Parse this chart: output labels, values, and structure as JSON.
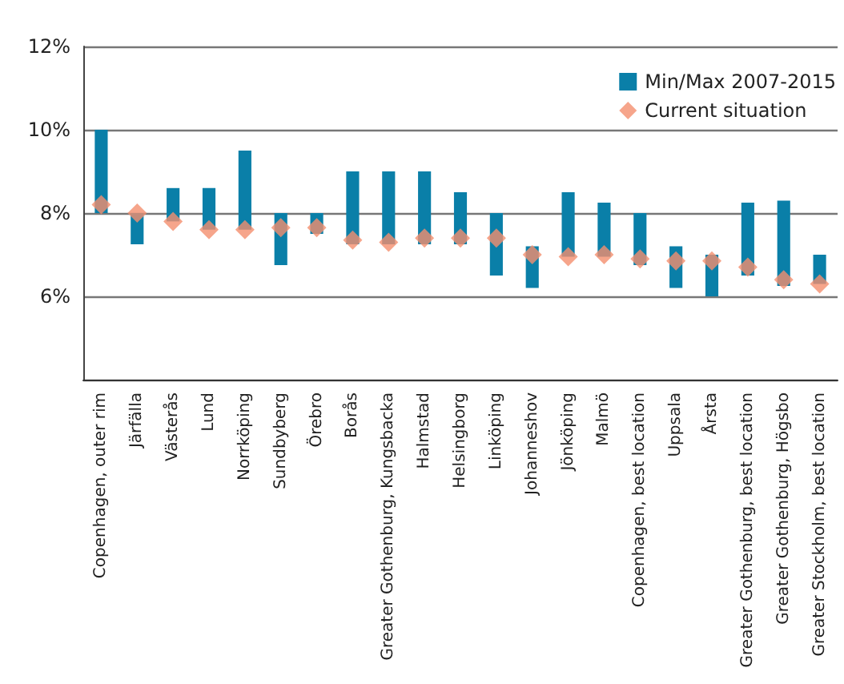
{
  "chart_data": {
    "type": "bar",
    "categories": [
      "Copenhagen, outer rim",
      "Järfälla",
      "Västerås",
      "Lund",
      "Norrköping",
      "Sundbyberg",
      "Örebro",
      "Borås",
      "Greater Gothenburg, Kungsbacka",
      "Halmstad",
      "Helsingborg",
      "Linköping",
      "Johanneshov",
      "Jönköping",
      "Malmö",
      "Copenhagen, best location",
      "Uppsala",
      "Årsta",
      "Greater Gothenburg, best location",
      "Greater Gothenburg, Högsbo",
      "Greater Stockholm, best location"
    ],
    "series": [
      {
        "name": "Min/Max 2007-2015",
        "color": "#0a7fa8",
        "base": [
          8.0,
          7.25,
          7.8,
          7.6,
          7.6,
          6.75,
          7.5,
          7.25,
          7.25,
          7.25,
          7.25,
          6.5,
          6.2,
          6.95,
          6.95,
          6.75,
          6.2,
          6.0,
          6.5,
          6.25,
          6.3
        ],
        "values": [
          2.0,
          0.75,
          0.8,
          1.0,
          1.9,
          1.25,
          0.5,
          1.75,
          1.75,
          1.75,
          1.25,
          1.5,
          1.0,
          1.55,
          1.3,
          1.25,
          1.0,
          1.0,
          1.75,
          2.05,
          0.7
        ]
      },
      {
        "name": "Current situation",
        "type": "scatter",
        "color": "#f48f6e",
        "marker": "diamond",
        "x": [
          "Copenhagen, outer rim",
          "Järfälla",
          "Västerås",
          "Lund",
          "Norrköping",
          "Sundbyberg",
          "Örebro",
          "Borås",
          "Greater Gothenburg, Kungsbacka",
          "Halmstad",
          "Helsingborg",
          "Linköping",
          "Johanneshov",
          "Jönköping",
          "Malmö",
          "Copenhagen, best location",
          "Uppsala",
          "Årsta",
          "Greater Gothenburg, best location",
          "Greater Gothenburg, Högsbo",
          "Greater Stockholm, best location"
        ],
        "values": [
          8.2,
          8.0,
          7.8,
          7.6,
          7.6,
          7.65,
          7.65,
          7.35,
          7.3,
          7.4,
          7.4,
          7.4,
          7.0,
          6.95,
          7.0,
          6.9,
          6.85,
          6.85,
          6.7,
          6.4,
          6.3
        ]
      }
    ],
    "ylim": [
      4,
      12
    ],
    "yticks": [
      {
        "value": 4,
        "label": null
      },
      {
        "value": 6,
        "label": "6%"
      },
      {
        "value": 8,
        "label": "8%"
      },
      {
        "value": 10,
        "label": "10%"
      },
      {
        "value": 12,
        "label": "12%"
      }
    ],
    "grid": "y",
    "legend": "top right"
  }
}
